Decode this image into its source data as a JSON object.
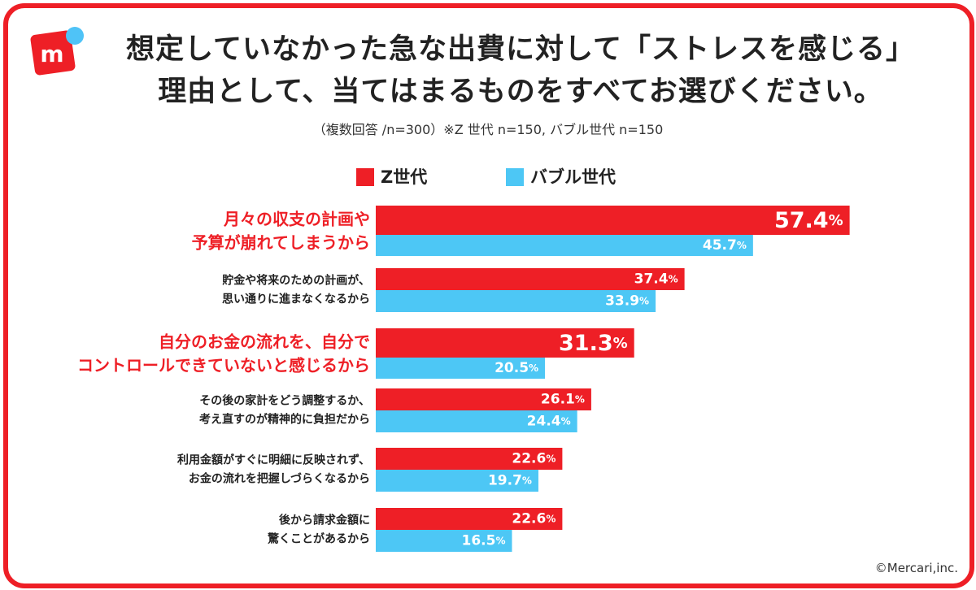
{
  "title": {
    "line1": "想定していなかった急な出費に対して「ストレスを感じる」",
    "line2": "理由として、当てはまるものをすべてお選びください。"
  },
  "subtitle": "（複数回答 /n=300）※Z 世代 n=150, バブル世代 n=150",
  "logo": {
    "letter": "m",
    "brand_color": "#ee1f26",
    "dot_color": "#4fc3f7"
  },
  "legend": [
    {
      "label": "Z世代",
      "color": "#ee1f26"
    },
    {
      "label": "バブル世代",
      "color": "#4dc7f5"
    }
  ],
  "copyright": "©Mercari,inc.",
  "colors": {
    "z_series": "#ee1f26",
    "bubble_series": "#4dc7f5",
    "highlight_text": "#ee1f26",
    "text": "#222222"
  },
  "chart_data": {
    "type": "bar",
    "orientation": "horizontal",
    "categories": [
      [
        "月々の収支の計画や",
        "予算が崩れてしまうから"
      ],
      [
        "貯金や将来のための計画が、",
        "思い通りに進まなくなるから"
      ],
      [
        "自分のお金の流れを、自分で",
        "コントロールできていないと感じるから"
      ],
      [
        "その後の家計をどう調整するか、",
        "考え直すのが精神的に負担だから"
      ],
      [
        "利用金額がすぐに明細に反映されず、",
        "お金の流れを把握しづらくなるから"
      ],
      [
        "後から請求金額に",
        "驚くことがあるから"
      ]
    ],
    "highlighted": [
      true,
      false,
      true,
      false,
      false,
      false
    ],
    "series": [
      {
        "name": "Z世代",
        "values": [
          57.4,
          37.4,
          31.3,
          26.1,
          22.6,
          22.6
        ]
      },
      {
        "name": "バブル世代",
        "values": [
          45.7,
          33.9,
          20.5,
          24.4,
          19.7,
          16.5
        ]
      }
    ],
    "unit": "%",
    "xlim": [
      0,
      100
    ],
    "legend_position": "top-center",
    "grid": false
  }
}
